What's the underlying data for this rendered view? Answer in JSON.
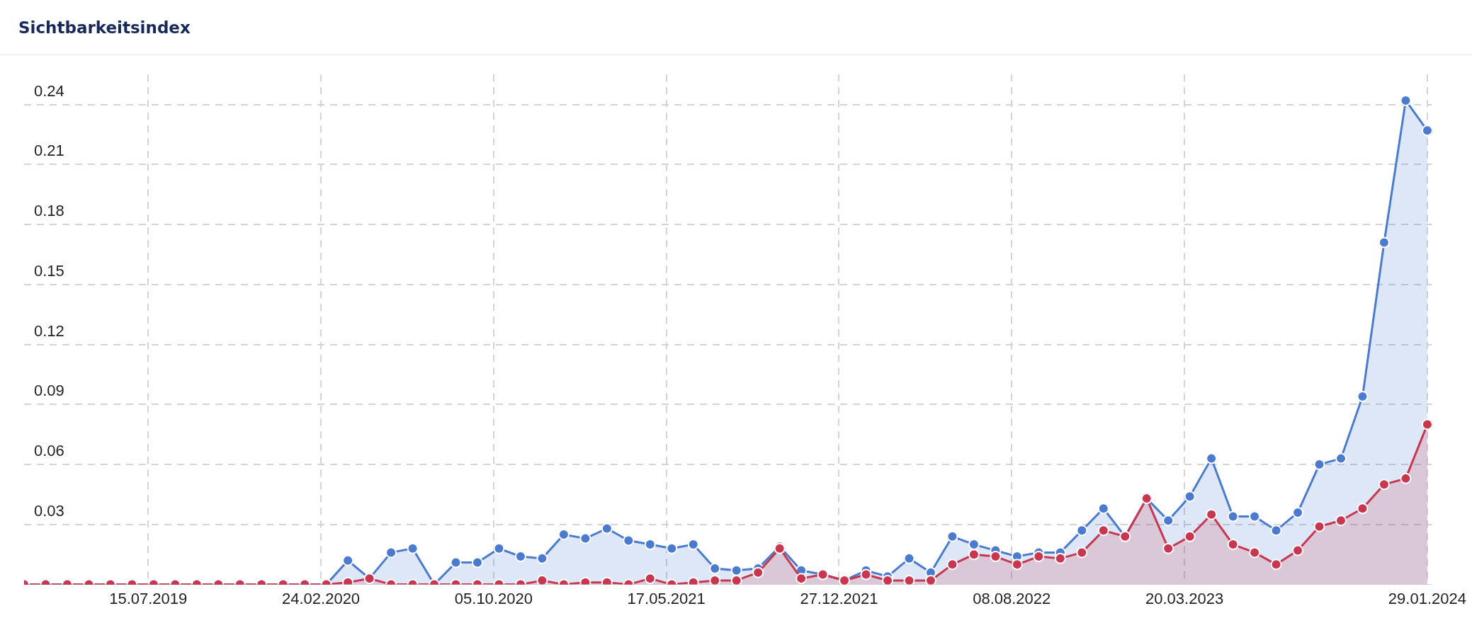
{
  "chart_data": {
    "type": "area",
    "title": "Sichtbarkeitsindex",
    "x": [
      "2019-02-04",
      "2019-03-04",
      "2019-04-01",
      "2019-04-29",
      "2019-05-27",
      "2019-06-24",
      "2019-07-22",
      "2019-08-19",
      "2019-09-16",
      "2019-10-14",
      "2019-11-11",
      "2019-12-09",
      "2020-01-06",
      "2020-02-03",
      "2020-03-02",
      "2020-03-30",
      "2020-04-27",
      "2020-05-25",
      "2020-06-22",
      "2020-07-20",
      "2020-08-17",
      "2020-09-14",
      "2020-10-12",
      "2020-11-09",
      "2020-12-07",
      "2021-01-04",
      "2021-02-01",
      "2021-03-01",
      "2021-03-29",
      "2021-04-26",
      "2021-05-24",
      "2021-06-21",
      "2021-07-19",
      "2021-08-16",
      "2021-09-13",
      "2021-10-11",
      "2021-11-08",
      "2021-12-06",
      "2022-01-03",
      "2022-01-31",
      "2022-02-28",
      "2022-03-28",
      "2022-04-25",
      "2022-05-23",
      "2022-06-20",
      "2022-07-18",
      "2022-08-15",
      "2022-09-12",
      "2022-10-10",
      "2022-11-07",
      "2022-12-05",
      "2023-01-02",
      "2023-01-30",
      "2023-02-27",
      "2023-03-27",
      "2023-04-24",
      "2023-05-22",
      "2023-06-19",
      "2023-07-17",
      "2023-08-14",
      "2023-09-11",
      "2023-10-09",
      "2023-11-06",
      "2023-12-04",
      "2024-01-01",
      "2024-01-29"
    ],
    "series": [
      {
        "color": "#4a7bd0",
        "values": [
          0,
          0,
          0,
          0,
          0,
          0,
          0,
          0,
          0,
          0,
          0,
          0,
          0,
          0,
          0,
          0.012,
          0.003,
          0.016,
          0.018,
          0,
          0.011,
          0.011,
          0.018,
          0.014,
          0.013,
          0.025,
          0.023,
          0.028,
          0.022,
          0.02,
          0.018,
          0.02,
          0.008,
          0.007,
          0.008,
          0.019,
          0.007,
          0.005,
          0.002,
          0.007,
          0.004,
          0.013,
          0.006,
          0.024,
          0.02,
          0.017,
          0.014,
          0.016,
          0.016,
          0.027,
          0.038,
          0.024,
          0.043,
          0.032,
          0.044,
          0.063,
          0.034,
          0.034,
          0.027,
          0.036,
          0.06,
          0.063,
          0.094,
          0.171,
          0.242,
          0.227
        ]
      },
      {
        "color": "#c8364f",
        "values": [
          0,
          0,
          0,
          0,
          0,
          0,
          0,
          0,
          0,
          0,
          0,
          0,
          0,
          0,
          0,
          0.001,
          0.003,
          0,
          0,
          0,
          0,
          0,
          0,
          0,
          0.002,
          0,
          0.001,
          0.001,
          0,
          0.003,
          0,
          0.001,
          0.002,
          0.002,
          0.006,
          0.018,
          0.003,
          0.005,
          0.002,
          0.005,
          0.002,
          0.002,
          0.002,
          0.01,
          0.015,
          0.014,
          0.01,
          0.014,
          0.013,
          0.016,
          0.027,
          0.024,
          0.043,
          0.018,
          0.024,
          0.035,
          0.02,
          0.016,
          0.01,
          0.017,
          0.029,
          0.032,
          0.038,
          0.05,
          0.053,
          0.08
        ]
      }
    ],
    "xlim": [
      "2019-02-04",
      "2024-02-04"
    ],
    "xticks": [
      {
        "value": "2019-07-15",
        "label": "15.07.2019"
      },
      {
        "value": "2020-02-24",
        "label": "24.02.2020"
      },
      {
        "value": "2020-10-05",
        "label": "05.10.2020"
      },
      {
        "value": "2021-05-17",
        "label": "17.05.2021"
      },
      {
        "value": "2021-12-27",
        "label": "27.12.2021"
      },
      {
        "value": "2022-08-08",
        "label": "08.08.2022"
      },
      {
        "value": "2023-03-20",
        "label": "20.03.2023"
      },
      {
        "value": "2024-01-29",
        "label": "29.01.2024"
      }
    ],
    "ylim": [
      0,
      0.255
    ],
    "yticks": [
      0.03,
      0.06,
      0.09,
      0.12,
      0.15,
      0.18,
      0.21,
      0.24
    ],
    "grid": true,
    "marker": "circle",
    "line_style": "solid",
    "legend": false
  }
}
